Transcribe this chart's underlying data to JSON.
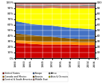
{
  "years": [
    1980,
    1983,
    1985,
    1989,
    1992,
    1995,
    1998,
    2001,
    2004,
    2006
  ],
  "regions": [
    "United States",
    "Canada and Mexico",
    "Eurasia",
    "Europe",
    "Asia & Oceania",
    "Central & South America",
    "Africa",
    "Middle East"
  ],
  "colors": [
    "#cc0000",
    "#ff8c00",
    "#8B5A00",
    "#4472c4",
    "#ffff00",
    "#c87050",
    "#909090",
    "#f0a0a0"
  ],
  "data": {
    "United States": [
      28,
      27,
      26,
      25,
      25,
      25,
      25,
      24,
      24,
      24
    ],
    "Canada and Mexico": [
      5,
      5,
      5,
      5,
      5,
      5,
      5,
      5,
      5,
      5
    ],
    "Eurasia": [
      12,
      11,
      11,
      10,
      9,
      7,
      6,
      6,
      6,
      6
    ],
    "Europe": [
      22,
      21,
      20,
      20,
      20,
      20,
      19,
      19,
      18,
      17
    ],
    "Asia & Oceania": [
      24,
      26,
      28,
      30,
      32,
      33,
      35,
      36,
      37,
      38
    ],
    "Central & South America": [
      4,
      4,
      4,
      4,
      4,
      4,
      4,
      4,
      4,
      4
    ],
    "Africa": [
      2,
      2,
      2,
      2,
      2,
      2,
      2,
      2,
      3,
      3
    ],
    "Middle East": [
      3,
      4,
      4,
      4,
      3,
      4,
      4,
      4,
      3,
      3
    ]
  },
  "legend_regions": [
    "United States",
    "Canada and Mexico",
    "Central & South America",
    "Europe",
    "Eurasia",
    "Middle East",
    "Africa",
    "Asia & Oceania"
  ],
  "legend_colors": [
    "#cc0000",
    "#ff8c00",
    "#c87050",
    "#4472c4",
    "#8B5A00",
    "#f0a0a0",
    "#909090",
    "#ffff00"
  ],
  "ylim": [
    0,
    100
  ],
  "tick_fontsize": 3.0,
  "background_color": "#ffffff"
}
